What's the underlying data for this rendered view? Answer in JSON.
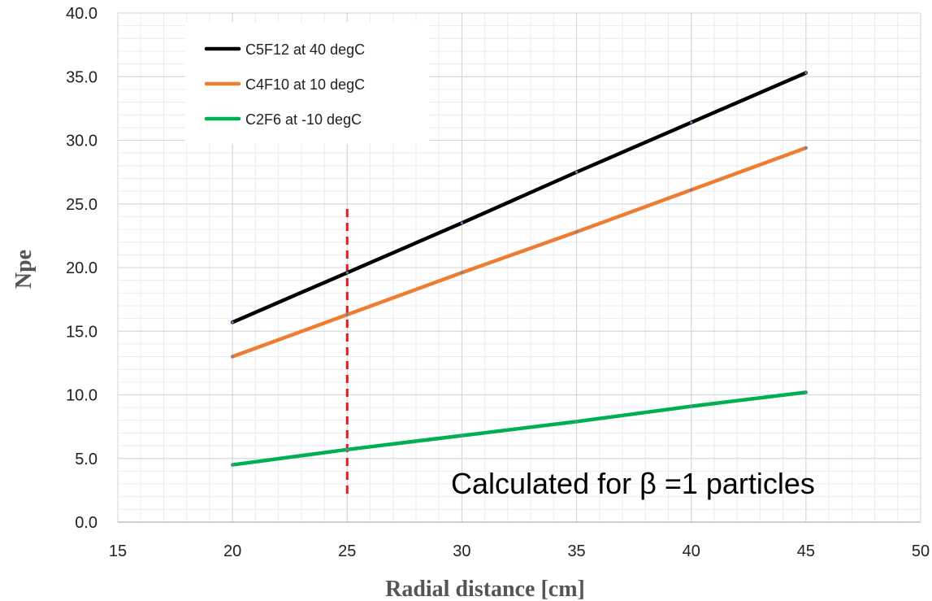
{
  "chart_data": {
    "type": "line",
    "title": "",
    "xlabel": "Radial distance [cm]",
    "ylabel": "Npe",
    "xlim": [
      15,
      50
    ],
    "ylim": [
      0,
      40
    ],
    "x_ticks": [
      15,
      20,
      25,
      30,
      35,
      40,
      45,
      50
    ],
    "y_ticks": [
      "0.0",
      "5.0",
      "10.0",
      "15.0",
      "20.0",
      "25.0",
      "30.0",
      "35.0",
      "40.0"
    ],
    "grid": true,
    "legend_position": "top-left",
    "series": [
      {
        "name": "C5F12 at 40 degC",
        "color": "#000000",
        "x": [
          20,
          25,
          30,
          35,
          40,
          45
        ],
        "y": [
          15.7,
          19.6,
          23.5,
          27.5,
          31.4,
          35.3
        ]
      },
      {
        "name": "C4F10 at 10 degC",
        "color": "#ED7D31",
        "x": [
          20,
          25,
          30,
          35,
          40,
          45
        ],
        "y": [
          13.0,
          16.3,
          19.6,
          22.8,
          26.1,
          29.4
        ]
      },
      {
        "name": "C2F6 at -10 degC",
        "color": "#00B050",
        "x": [
          20,
          25,
          30,
          35,
          40,
          45
        ],
        "y": [
          4.5,
          5.7,
          6.8,
          7.9,
          9.1,
          10.2
        ]
      }
    ],
    "reference_line": {
      "x": 25,
      "y_range": [
        0,
        24.6
      ],
      "color": "#E41A1C",
      "style": "dashed"
    },
    "annotation": "Calculated for β =1 particles"
  }
}
